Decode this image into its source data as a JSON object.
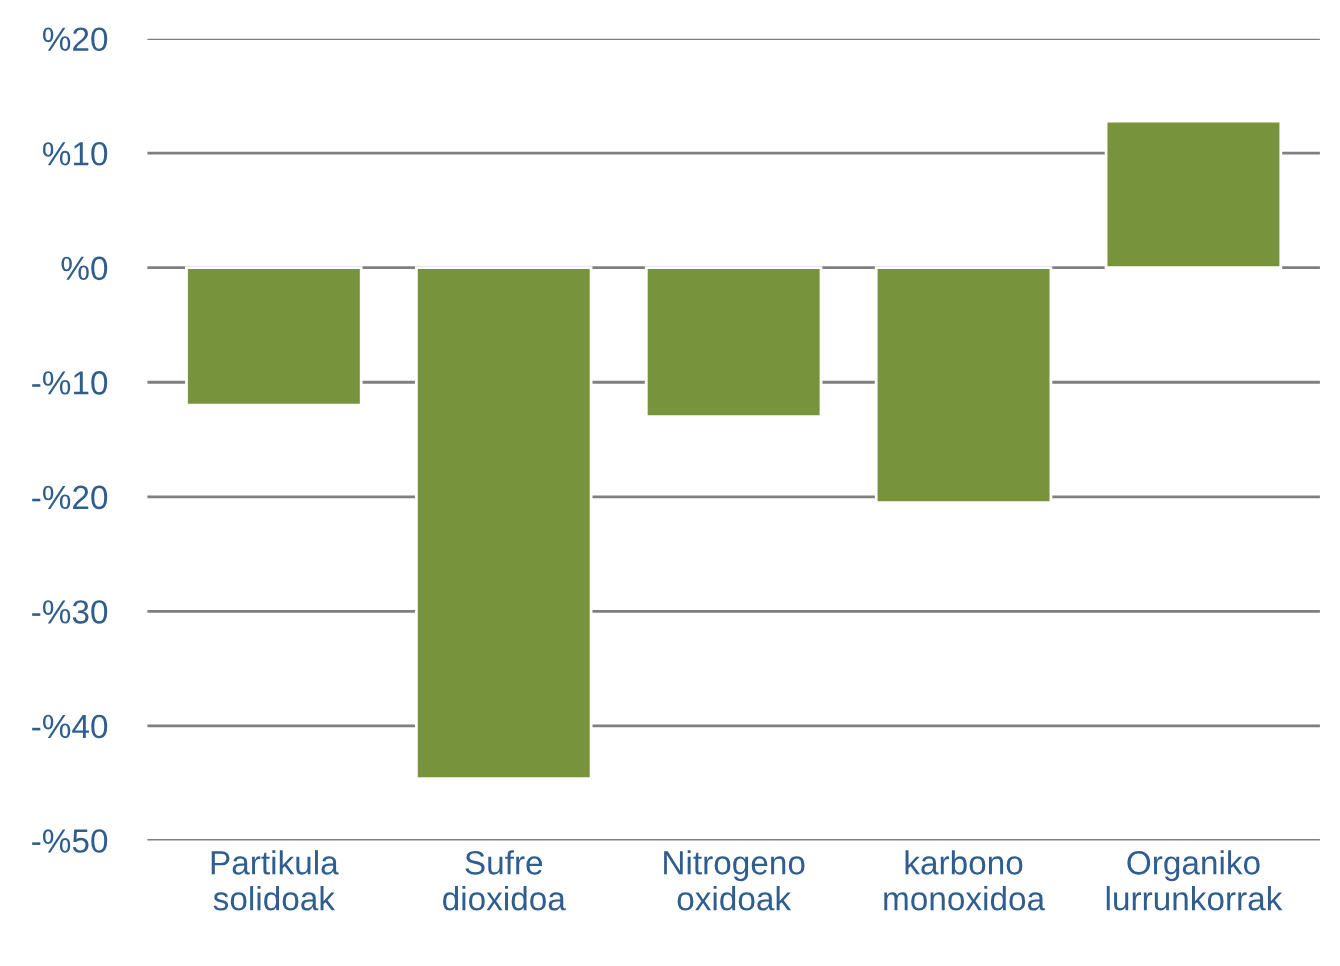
{
  "chart_data": {
    "type": "bar",
    "categories": [
      "Partikula\nsolidoak",
      "Sufre\ndioxidoa",
      "Nitrogeno\noxidoak",
      "karbono\nmonoxidoa",
      "Organiko\nlurrunkorrak"
    ],
    "values": [
      -12,
      -44.6,
      -13,
      -20.5,
      12.8
    ],
    "color": "#77933c",
    "ylim": [
      -50,
      20
    ],
    "yticks": [
      {
        "value": -50,
        "label": "-%50"
      },
      {
        "value": -40,
        "label": "-%40"
      },
      {
        "value": -30,
        "label": "-%30"
      },
      {
        "value": -20,
        "label": "-%20"
      },
      {
        "value": -10,
        "label": "-%10"
      },
      {
        "value": 0,
        "label": "%0"
      },
      {
        "value": 10,
        "label": "%10"
      },
      {
        "value": 20,
        "label": "%20"
      }
    ],
    "grid": "y",
    "legend": false
  }
}
